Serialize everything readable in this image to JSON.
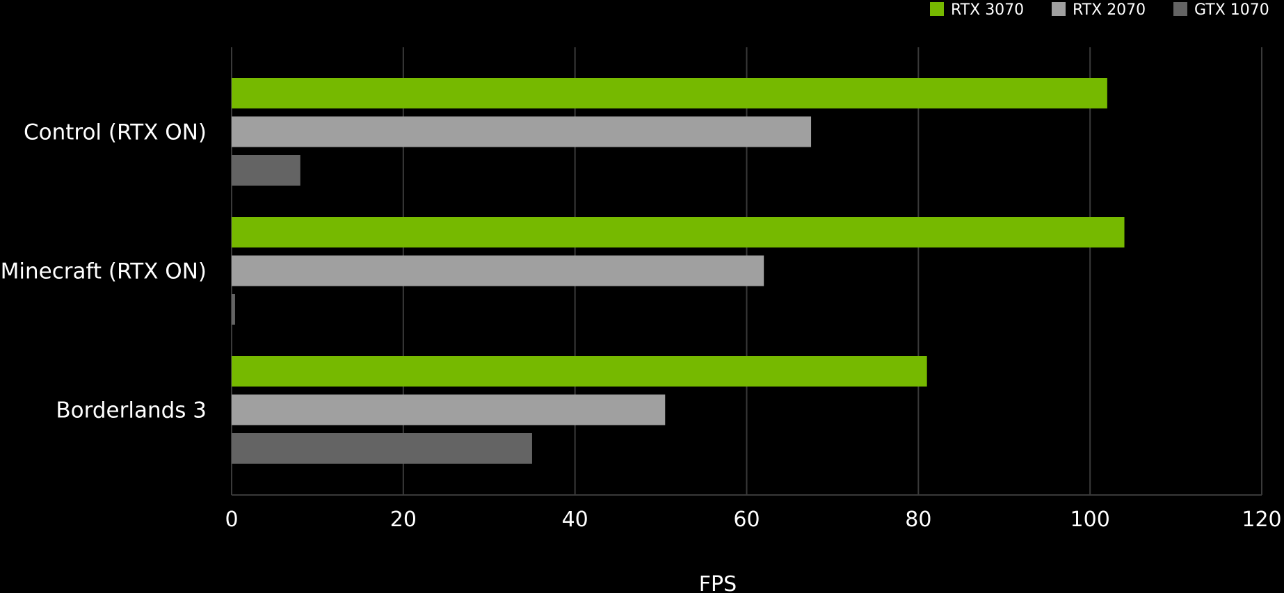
{
  "chart_data": {
    "type": "bar",
    "orientation": "horizontal",
    "categories": [
      "Control (RTX ON)",
      "Minecraft (RTX ON)",
      "Borderlands 3"
    ],
    "series": [
      {
        "name": "RTX 3070",
        "color": "#76b900",
        "values": [
          102,
          104,
          81
        ]
      },
      {
        "name": "RTX 2070",
        "color": "#a0a0a0",
        "values": [
          67.5,
          62,
          50.5
        ]
      },
      {
        "name": "GTX 1070",
        "color": "#646464",
        "values": [
          8,
          0.4,
          35
        ]
      }
    ],
    "title": "",
    "xlabel": "FPS",
    "ylabel": "",
    "xlim": [
      0,
      120
    ],
    "xticks": [
      0,
      20,
      40,
      60,
      80,
      100,
      120
    ],
    "grid": true,
    "legend_position": "top-right",
    "background": "#000000",
    "gridline_color": "#3a3a3a",
    "text_color": "#ffffff"
  }
}
